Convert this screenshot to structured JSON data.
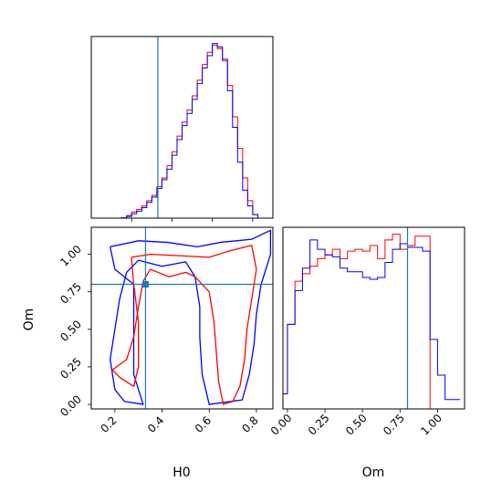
{
  "chart_data": [
    {
      "type": "histogram",
      "panel": "H0 marginal",
      "x": [
        0.0,
        0.025,
        0.05,
        0.075,
        0.1,
        0.125,
        0.15,
        0.175,
        0.2,
        0.225,
        0.25,
        0.275,
        0.3,
        0.325,
        0.35,
        0.375,
        0.4,
        0.425,
        0.45,
        0.475,
        0.5,
        0.525,
        0.55,
        0.575,
        0.6,
        0.625,
        0.65,
        0.675,
        0.7,
        0.725,
        0.75,
        0.775,
        0.8,
        0.825,
        0.85,
        0.875
      ],
      "xlim": [
        0.0,
        0.9
      ],
      "series": [
        {
          "color": "#ff0000",
          "values": [
            0,
            0,
            0,
            0,
            0,
            0,
            0.2,
            1.5,
            3.5,
            5,
            7,
            10,
            13,
            18,
            23,
            30,
            38,
            47,
            55,
            62,
            70,
            79,
            88,
            95,
            99,
            97,
            90,
            76,
            58,
            40,
            23,
            10,
            2,
            0,
            0,
            0
          ]
        },
        {
          "color": "#0000ff",
          "values": [
            0,
            0,
            0,
            0,
            0,
            0,
            0.1,
            1,
            2.5,
            4,
            6,
            9,
            12,
            17,
            22,
            28,
            36,
            45,
            53,
            60,
            68,
            77,
            86,
            93,
            100,
            98,
            91,
            73,
            52,
            32,
            16,
            7,
            2,
            0,
            0,
            0
          ]
        }
      ],
      "truth_x": 0.33
    },
    {
      "type": "contour",
      "panel": "H0 vs Om joint",
      "xlabel": "H0",
      "ylabel": "Om",
      "xlim": [
        0.1,
        0.87
      ],
      "ylim": [
        -0.03,
        1.18
      ],
      "xticks": [
        "0.2",
        "0.4",
        "0.6",
        "0.8"
      ],
      "yticks": [
        "0.00",
        "0.25",
        "0.50",
        "0.75",
        "1.00"
      ],
      "truth": [
        0.33,
        0.8
      ],
      "series": [
        {
          "color": "#0000ff",
          "contours": [
            [
              [
                0.18,
                1.05
              ],
              [
                0.3,
                1.09
              ],
              [
                0.42,
                1.08
              ],
              [
                0.55,
                1.05
              ],
              [
                0.65,
                1.08
              ],
              [
                0.78,
                1.1
              ],
              [
                0.86,
                1.16
              ],
              [
                0.86,
                1.0
              ],
              [
                0.82,
                0.8
              ],
              [
                0.8,
                0.6
              ],
              [
                0.79,
                0.4
              ],
              [
                0.77,
                0.2
              ],
              [
                0.74,
                0.03
              ],
              [
                0.6,
                0.0
              ],
              [
                0.57,
                0.2
              ],
              [
                0.56,
                0.45
              ],
              [
                0.56,
                0.65
              ],
              [
                0.54,
                0.85
              ],
              [
                0.5,
                0.95
              ],
              [
                0.4,
                0.92
              ],
              [
                0.3,
                0.96
              ],
              [
                0.25,
                0.88
              ],
              [
                0.22,
                0.7
              ],
              [
                0.2,
                0.5
              ],
              [
                0.18,
                0.3
              ],
              [
                0.2,
                0.1
              ],
              [
                0.24,
                0.02
              ],
              [
                0.32,
                0.0
              ],
              [
                0.28,
                0.2
              ],
              [
                0.28,
                0.5
              ],
              [
                0.28,
                0.8
              ],
              [
                0.2,
                0.9
              ],
              [
                0.18,
                1.05
              ]
            ]
          ]
        },
        {
          "color": "#ff0000",
          "contours": [
            [
              [
                0.27,
                0.98
              ],
              [
                0.35,
                1.0
              ],
              [
                0.48,
                0.99
              ],
              [
                0.6,
                0.98
              ],
              [
                0.68,
                1.02
              ],
              [
                0.78,
                1.06
              ],
              [
                0.8,
                0.9
              ],
              [
                0.78,
                0.7
              ],
              [
                0.76,
                0.5
              ],
              [
                0.75,
                0.3
              ],
              [
                0.73,
                0.12
              ],
              [
                0.7,
                0.02
              ],
              [
                0.66,
                0.0
              ],
              [
                0.64,
                0.15
              ],
              [
                0.63,
                0.35
              ],
              [
                0.62,
                0.55
              ],
              [
                0.6,
                0.75
              ],
              [
                0.54,
                0.85
              ],
              [
                0.5,
                0.88
              ],
              [
                0.43,
                0.85
              ],
              [
                0.35,
                0.9
              ],
              [
                0.32,
                0.82
              ],
              [
                0.3,
                0.65
              ],
              [
                0.28,
                0.45
              ],
              [
                0.25,
                0.3
              ],
              [
                0.19,
                0.23
              ],
              [
                0.22,
                0.18
              ],
              [
                0.28,
                0.12
              ],
              [
                0.3,
                0.25
              ],
              [
                0.3,
                0.55
              ],
              [
                0.28,
                0.8
              ],
              [
                0.27,
                0.98
              ]
            ]
          ]
        }
      ]
    },
    {
      "type": "histogram",
      "panel": "Om marginal",
      "xlabel": "Om",
      "xlim": [
        -0.03,
        1.18
      ],
      "xticks": [
        "0.00",
        "0.25",
        "0.50",
        "0.75",
        "1.00"
      ],
      "x": [
        -0.03,
        0.0,
        0.05,
        0.1,
        0.15,
        0.2,
        0.25,
        0.3,
        0.35,
        0.4,
        0.45,
        0.5,
        0.55,
        0.6,
        0.65,
        0.7,
        0.75,
        0.8,
        0.85,
        0.9,
        0.95,
        1.0,
        1.05,
        1.1,
        1.15
      ],
      "series": [
        {
          "color": "#ff0000",
          "values": [
            8,
            45,
            68,
            72,
            76,
            80,
            82,
            85,
            80,
            84,
            85,
            84,
            87,
            80,
            90,
            93,
            85,
            87,
            92,
            92,
            0,
            0,
            0,
            0
          ]
        },
        {
          "color": "#0000ff",
          "values": [
            8,
            45,
            63,
            75,
            90,
            85,
            82,
            81,
            75,
            73,
            73,
            70,
            69,
            70,
            78,
            85,
            88,
            86,
            86,
            84,
            37,
            18,
            5,
            5
          ]
        }
      ],
      "truth_x": 0.8
    }
  ]
}
